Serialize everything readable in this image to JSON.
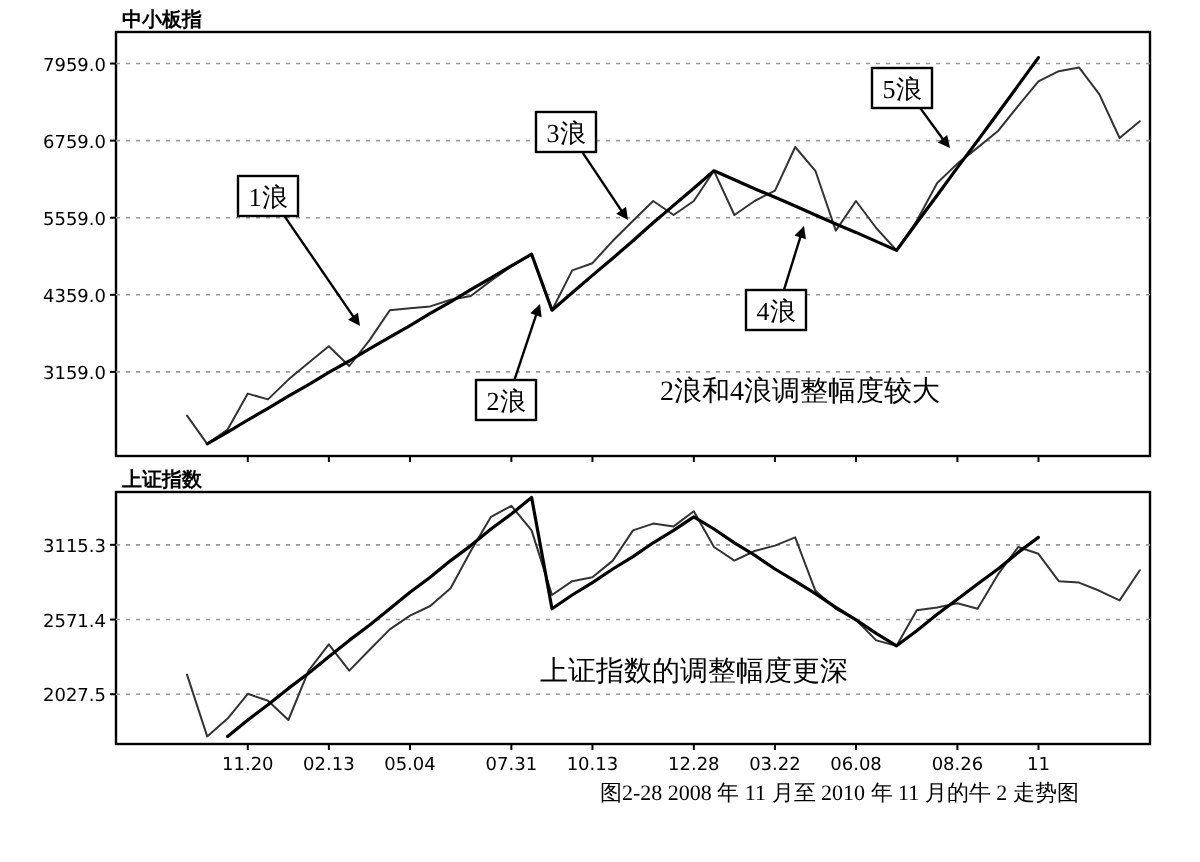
{
  "chart_data": [
    {
      "type": "line",
      "title": "中小板指",
      "ylim": [
        1850,
        8450
      ],
      "categories": [
        null,
        null,
        null,
        null,
        null,
        null,
        "11.20",
        null,
        null,
        null,
        "02.13",
        null,
        null,
        null,
        "05.04",
        null,
        null,
        null,
        null,
        "07.31",
        null,
        null,
        null,
        "10.13",
        null,
        null,
        null,
        null,
        "12.28",
        null,
        null,
        null,
        "03.22",
        null,
        null,
        null,
        "06.08",
        null,
        null,
        null,
        null,
        "08.26",
        null,
        null,
        null,
        "11",
        null,
        null,
        null,
        null,
        null
      ],
      "yticks": [
        {
          "value": 3159,
          "label": "3159.0"
        },
        {
          "value": 4359,
          "label": "4359.0"
        },
        {
          "value": 5559,
          "label": "5559.0"
        },
        {
          "value": 6759,
          "label": "6759.0"
        },
        {
          "value": 7959,
          "label": "7959.0"
        }
      ],
      "tick_labels": "y",
      "grid": "y",
      "line_style": "solid",
      "series": [
        {
          "color": "#333333",
          "values": [
            null,
            null,
            null,
            2480,
            2040,
            2260,
            2820,
            2730,
            3040,
            3300,
            3560,
            3250,
            3650,
            4120,
            4150,
            4180,
            4280,
            4340,
            4580,
            4800,
            4990,
            4120,
            4740,
            4850,
            5200,
            5510,
            5820,
            5600,
            5820,
            6290,
            5600,
            5820,
            5980,
            6660,
            6290,
            5360,
            5820,
            5400,
            5050,
            5510,
            6100,
            6400,
            6650,
            6910,
            7300,
            7680,
            7840,
            7900,
            7480,
            6800,
            7060
          ]
        },
        {
          "color": "#000000",
          "values": [
            null,
            null,
            null,
            null,
            2040,
            2220,
            2410,
            2590,
            2780,
            2960,
            3150,
            3330,
            3520,
            3700,
            3880,
            4070,
            4250,
            4440,
            4620,
            4810,
            4990,
            4120,
            4390,
            4660,
            4930,
            5200,
            5480,
            5750,
            6020,
            6290,
            6150,
            6010,
            5880,
            5740,
            5600,
            5460,
            5330,
            5190,
            5050,
            5480,
            5910,
            6340,
            6760,
            7190,
            7620,
            8050,
            null,
            null,
            null,
            null,
            null
          ]
        }
      ],
      "annotations": [
        "1浪",
        "2浪",
        "3浪",
        "4浪",
        "5浪",
        "2浪和4浪调整幅度较大"
      ]
    },
    {
      "type": "line",
      "title": "上证指数",
      "ylim": [
        1665,
        3500
      ],
      "categories": [
        null,
        null,
        null,
        null,
        null,
        null,
        "11.20",
        null,
        null,
        null,
        "02.13",
        null,
        null,
        null,
        "05.04",
        null,
        null,
        null,
        null,
        "07.31",
        null,
        null,
        null,
        "10.13",
        null,
        null,
        null,
        null,
        "12.28",
        null,
        null,
        null,
        "03.22",
        null,
        null,
        null,
        "06.08",
        null,
        null,
        null,
        null,
        "08.26",
        null,
        null,
        null,
        "11",
        null,
        null,
        null,
        null,
        null
      ],
      "yticks": [
        {
          "value": 2027.5,
          "label": "2027.5"
        },
        {
          "value": 2571.4,
          "label": "2571.4"
        },
        {
          "value": 3115.3,
          "label": "3115.3"
        }
      ],
      "grid": "y",
      "line_style": "solid",
      "series": [
        {
          "color": "#333333",
          "values": [
            null,
            null,
            null,
            2170,
            1720,
            1850,
            2030,
            1980,
            1840,
            2200,
            2390,
            2200,
            2350,
            2500,
            2600,
            2670,
            2800,
            3070,
            3320,
            3400,
            3220,
            2750,
            2850,
            2880,
            3000,
            3220,
            3270,
            3250,
            3360,
            3100,
            3000,
            3070,
            3110,
            3170,
            2780,
            2650,
            2570,
            2420,
            2380,
            2640,
            2660,
            2690,
            2650,
            2900,
            3100,
            3050,
            2850,
            2840,
            2780,
            2710,
            2930
          ]
        },
        {
          "color": "#000000",
          "values": [
            null,
            null,
            null,
            null,
            null,
            1720,
            1840,
            1950,
            2070,
            2180,
            2300,
            2420,
            2530,
            2650,
            2770,
            2880,
            3000,
            3110,
            3230,
            3340,
            3460,
            2650,
            2750,
            2840,
            2940,
            3030,
            3130,
            3220,
            3320,
            3230,
            3130,
            3040,
            2940,
            2850,
            2760,
            2660,
            2570,
            2470,
            2380,
            2490,
            2610,
            2720,
            2830,
            2940,
            3060,
            3170,
            null,
            null,
            null,
            null,
            null
          ]
        }
      ],
      "annotations": [
        "上证指数的调整幅度更深",
        "图2-28   2008 年 11 月至 2010 年 11 月的牛 2 走势图"
      ]
    }
  ]
}
